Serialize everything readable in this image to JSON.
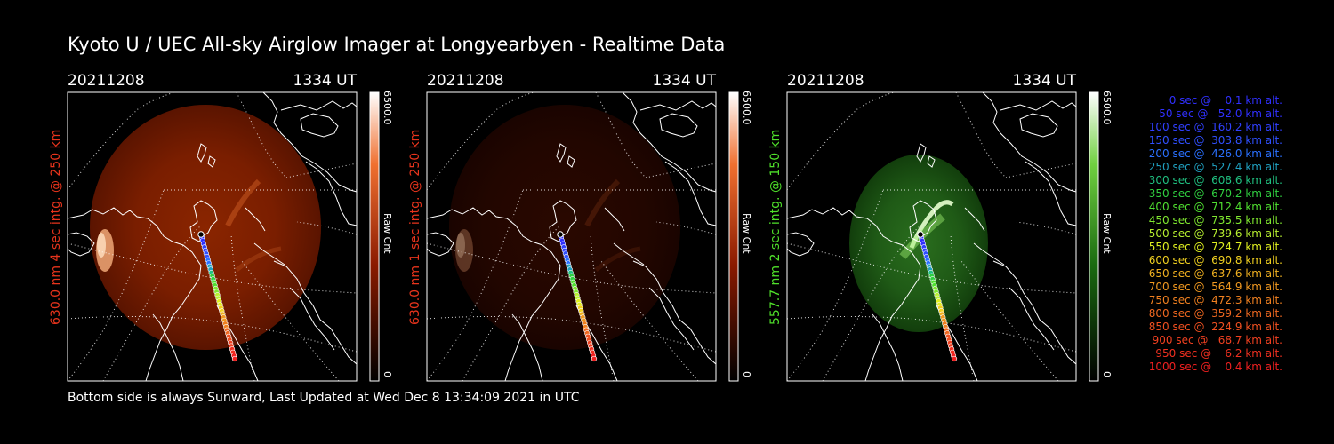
{
  "title": "Kyoto U / UEC All-sky Airglow Imager at Longyearbyen - Realtime Data",
  "footer": "Bottom side is always Sunward, Last Updated at Wed Dec  8 13:34:09 2021 in UTC",
  "panels": [
    {
      "date": "20211208",
      "time": "1334 UT",
      "side_label": "630.0 nm 4 sec intg. @ 250 km",
      "side_color": "#e8341c",
      "colorbar_max": "6500.0",
      "colorbar_min": "0",
      "colorbar_label": "Raw Cnt",
      "colormap": "red",
      "brightness": "bright",
      "track_color_profile": "full"
    },
    {
      "date": "20211208",
      "time": "1334 UT",
      "side_label": "630.0 nm 1 sec intg. @ 250 km",
      "side_color": "#e8341c",
      "colorbar_max": "6500.0",
      "colorbar_min": "0",
      "colorbar_label": "Raw Cnt",
      "colormap": "red",
      "brightness": "dim",
      "track_color_profile": "full"
    },
    {
      "date": "20211208",
      "time": "1334 UT",
      "side_label": "557.7 nm 2 sec intg. @ 150 km",
      "side_color": "#4fe02a",
      "colorbar_max": "6500.0",
      "colorbar_min": "0",
      "colorbar_label": "Raw Cnt",
      "colormap": "green",
      "brightness": "medium",
      "track_color_profile": "full"
    }
  ],
  "legend": [
    {
      "text": "0 sec @    0.1 km alt.",
      "color": "#3030ff"
    },
    {
      "text": "50 sec @   52.0 km alt.",
      "color": "#3030ff"
    },
    {
      "text": "100 sec @  160.2 km alt.",
      "color": "#3040ff"
    },
    {
      "text": "150 sec @  303.8 km alt.",
      "color": "#3050ff"
    },
    {
      "text": "200 sec @  426.0 km alt.",
      "color": "#2a70ff"
    },
    {
      "text": "250 sec @  527.4 km alt.",
      "color": "#20a0c0"
    },
    {
      "text": "300 sec @  608.6 km alt.",
      "color": "#20c080"
    },
    {
      "text": "350 sec @  670.2 km alt.",
      "color": "#30d040"
    },
    {
      "text": "400 sec @  712.4 km alt.",
      "color": "#50e030"
    },
    {
      "text": "450 sec @  735.5 km alt.",
      "color": "#80e830"
    },
    {
      "text": "500 sec @  739.6 km alt.",
      "color": "#b8f030"
    },
    {
      "text": "550 sec @  724.7 km alt.",
      "color": "#e0f020"
    },
    {
      "text": "600 sec @  690.8 km alt.",
      "color": "#f0d020"
    },
    {
      "text": "650 sec @  637.6 km alt.",
      "color": "#f0b020"
    },
    {
      "text": "700 sec @  564.9 km alt.",
      "color": "#f09820"
    },
    {
      "text": "750 sec @  472.3 km alt.",
      "color": "#f08020"
    },
    {
      "text": "800 sec @  359.2 km alt.",
      "color": "#f06820"
    },
    {
      "text": "850 sec @  224.9 km alt.",
      "color": "#f05020"
    },
    {
      "text": "900 sec @   68.7 km alt.",
      "color": "#f04020"
    },
    {
      "text": "950 sec @    6.2 km alt.",
      "color": "#f03020"
    },
    {
      "text": "1000 sec @    0.4 km alt.",
      "color": "#f02020"
    }
  ]
}
